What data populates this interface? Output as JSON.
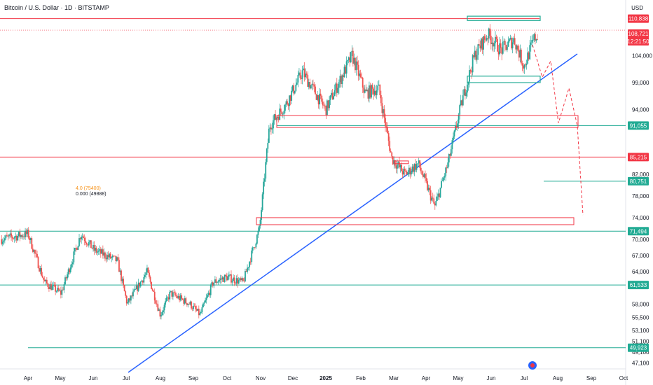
{
  "chart_data": {
    "type": "candlestick",
    "title": "Bitcoin / U.S. Dollar · 1D · BITSTAMP",
    "currency": "USD",
    "x_labels": [
      "Apr",
      "May",
      "Jun",
      "Jul",
      "Aug",
      "Sep",
      "Oct",
      "Nov",
      "Dec",
      "2025",
      "Feb",
      "Mar",
      "Apr",
      "May",
      "Jun",
      "Jul",
      "Aug",
      "Sep",
      "Oct"
    ],
    "y_ticks": [
      47100,
      49100,
      51100,
      53100,
      55500,
      58000,
      64000,
      67000,
      70000,
      74000,
      78000,
      82000,
      94000,
      99000,
      104000
    ],
    "ylim": [
      46000,
      113000
    ],
    "price_tags": [
      {
        "value": "110,838",
        "color": "#f23645"
      },
      {
        "value": "108,721",
        "color": "#f23645"
      },
      {
        "value": "12:21:50",
        "color": "#f23645"
      },
      {
        "value": "91,055",
        "color": "#22ab94"
      },
      {
        "value": "85,215",
        "color": "#f23645"
      },
      {
        "value": "80,751",
        "color": "#22ab94"
      },
      {
        "value": "71,494",
        "color": "#22ab94"
      },
      {
        "value": "61,533",
        "color": "#22ab94"
      },
      {
        "value": "49,923",
        "color": "#22ab94"
      }
    ],
    "horizontal_levels": [
      {
        "value": 110838,
        "color": "#f23645"
      },
      {
        "value": 91055,
        "color": "#22ab94"
      },
      {
        "value": 85215,
        "color": "#f23645"
      },
      {
        "value": 80751,
        "color": "#22ab94"
      },
      {
        "value": 71494,
        "color": "#22ab94"
      },
      {
        "value": 61533,
        "color": "#22ab94"
      },
      {
        "value": 49923,
        "color": "#22ab94"
      }
    ],
    "trendline": {
      "from": [
        "Jul 2024",
        46000
      ],
      "to": [
        "Jul 2025",
        105000
      ],
      "color": "#2962ff"
    },
    "candle_colors": {
      "up": "#26a69a",
      "down": "#ef5350"
    },
    "annotation_lines": [
      "4.0 (75400)",
      "0.000 (49888)"
    ]
  }
}
